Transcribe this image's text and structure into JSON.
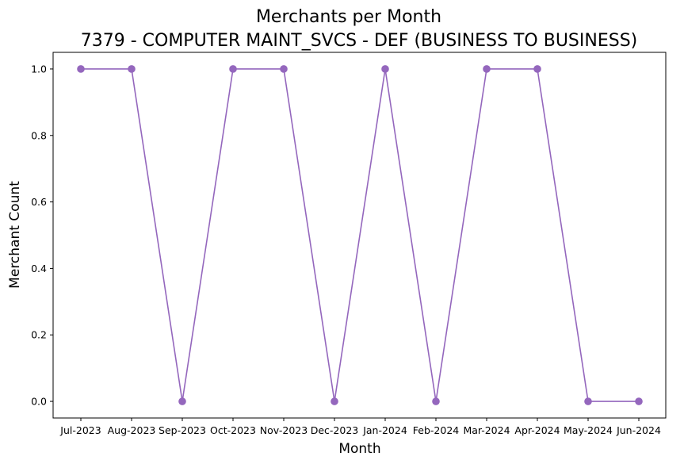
{
  "chart_data": {
    "type": "line",
    "title": "Merchants per Month",
    "subtitle": "7379 - COMPUTER MAINT_SVCS - DEF (BUSINESS TO BUSINESS)",
    "xlabel": "Month",
    "ylabel": "Merchant Count",
    "categories": [
      "Jul-2023",
      "Aug-2023",
      "Sep-2023",
      "Oct-2023",
      "Nov-2023",
      "Dec-2023",
      "Jan-2024",
      "Feb-2024",
      "Mar-2024",
      "Apr-2024",
      "May-2024",
      "Jun-2024"
    ],
    "series": [
      {
        "values": [
          1,
          1,
          0,
          1,
          1,
          0,
          1,
          0,
          1,
          1,
          0,
          0
        ],
        "color": "#9467bd",
        "marker": "circle"
      }
    ],
    "ylim": [
      -0.05,
      1.05
    ],
    "yticks": [
      0.0,
      0.2,
      0.4,
      0.6,
      0.8,
      1.0
    ],
    "ytick_labels": [
      "0.0",
      "0.2",
      "0.4",
      "0.6",
      "0.8",
      "1.0"
    ],
    "grid": false,
    "legend": "none"
  }
}
